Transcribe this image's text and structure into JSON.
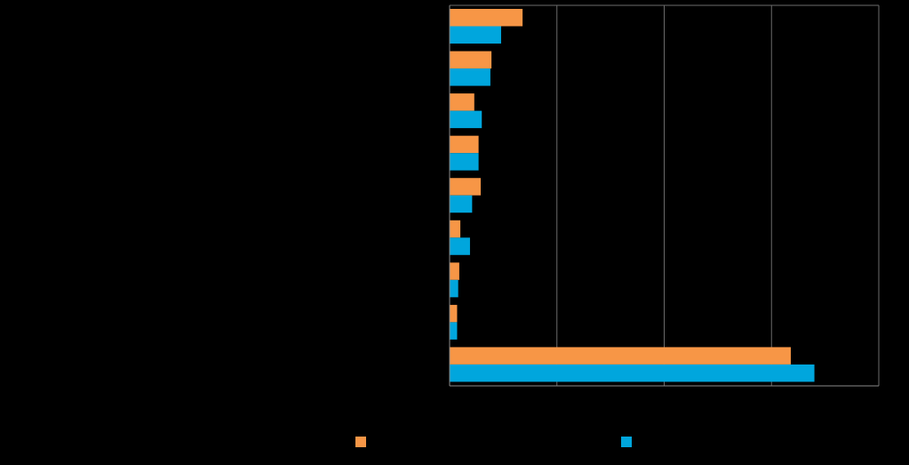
{
  "chart_data": {
    "type": "bar",
    "orientation": "horizontal",
    "categories": [
      "",
      "",
      "",
      "",
      "",
      "",
      "",
      "",
      ""
    ],
    "series": [
      {
        "name": "",
        "color": "#f79646",
        "values": [
          6.8,
          3.9,
          2.3,
          2.7,
          2.9,
          1.0,
          0.9,
          0.7,
          31.8
        ]
      },
      {
        "name": "",
        "color": "#00a6dd",
        "values": [
          4.8,
          3.8,
          3.0,
          2.7,
          2.1,
          1.9,
          0.8,
          0.7,
          34.0
        ]
      }
    ],
    "xlim": [
      0,
      40
    ],
    "xticks": [
      0,
      10,
      20,
      30,
      40
    ],
    "grid": true,
    "legend": "bottom",
    "title": "",
    "xlabel": "",
    "ylabel": ""
  }
}
